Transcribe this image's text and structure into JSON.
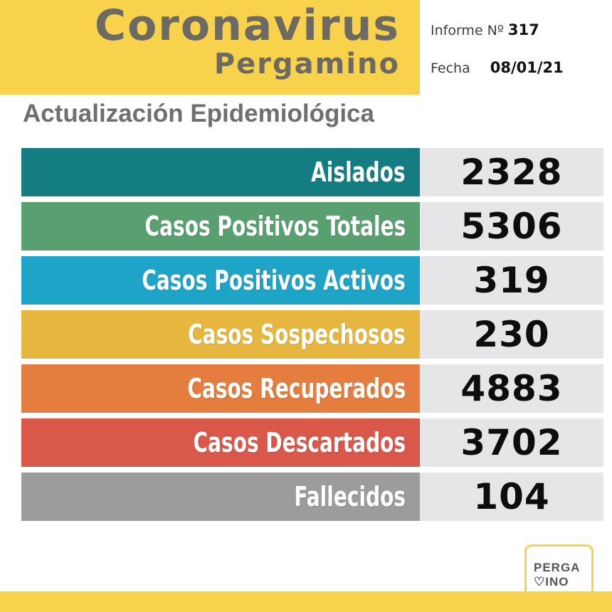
{
  "header": {
    "title": "Coronavirus",
    "subtitle": "Pergamino",
    "informe_label": "Informe Nº",
    "informe_value": "317",
    "fecha_label": "Fecha",
    "fecha_value": "08/01/21"
  },
  "section_title": "Actualización Epidemiológica",
  "rows": [
    {
      "label": "Aislados",
      "value": "2328",
      "color": "#147d84"
    },
    {
      "label": "Casos Positivos Totales",
      "value": "5306",
      "color": "#59a070"
    },
    {
      "label": "Casos Positivos Activos",
      "value": "319",
      "color": "#1ea4c6"
    },
    {
      "label": "Casos Sospechosos",
      "value": "230",
      "color": "#e6b63f"
    },
    {
      "label": "Casos Recuperados",
      "value": "4883",
      "color": "#e47d3e"
    },
    {
      "label": "Casos Descartados",
      "value": "3702",
      "color": "#d9584a"
    },
    {
      "label": "Fallecidos",
      "value": "104",
      "color": "#9c9c9c"
    }
  ],
  "logo": {
    "line1": "PERGA",
    "line2": "♡INO"
  },
  "colors": {
    "brand_yellow": "#f7d24a",
    "title_gray": "#6d6a66",
    "value_bg": "#e6e5e7"
  }
}
